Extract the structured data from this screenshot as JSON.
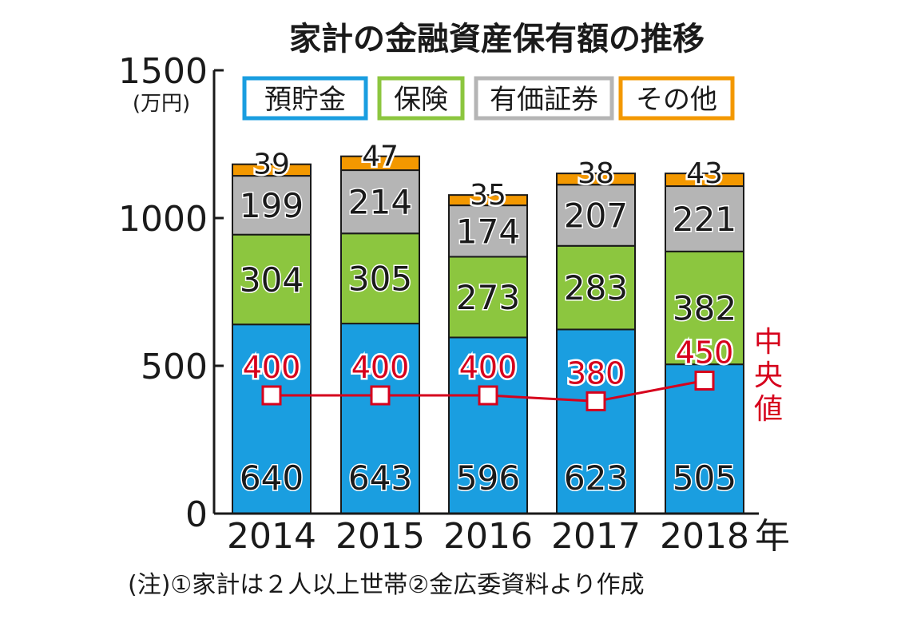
{
  "chart_data": {
    "type": "bar",
    "stacked": true,
    "title": "家計の金融資産保有額の推移",
    "ylabel": "(万円)",
    "xlabel_suffix": "年",
    "yticks": [
      0,
      500,
      1000,
      1500
    ],
    "ylim": [
      0,
      1500
    ],
    "categories": [
      "2014",
      "2015",
      "2016",
      "2017",
      "2018"
    ],
    "series": [
      {
        "name": "預貯金",
        "color": "#1a9ee0",
        "values": [
          640,
          643,
          596,
          623,
          505
        ]
      },
      {
        "name": "保険",
        "color": "#8cc63f",
        "values": [
          304,
          305,
          273,
          283,
          382
        ]
      },
      {
        "name": "有価証券",
        "color": "#b5b5b5",
        "values": [
          199,
          214,
          174,
          207,
          221
        ]
      },
      {
        "name": "その他",
        "color": "#f39800",
        "values": [
          39,
          47,
          35,
          38,
          43
        ]
      }
    ],
    "median": {
      "name": "中央値",
      "color": "#d6001c",
      "values": [
        400,
        400,
        400,
        380,
        450
      ]
    },
    "legend_position": "top",
    "grid": false
  },
  "note": "(注)①家計は２人以上世帯②金広委資料より作成"
}
